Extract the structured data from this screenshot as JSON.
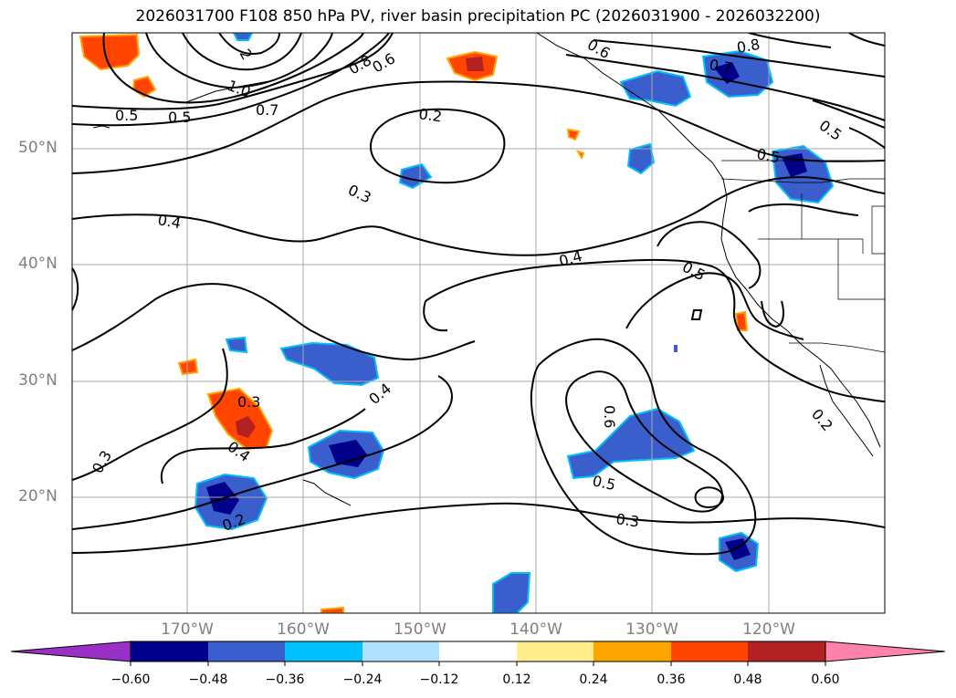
{
  "title": "2026031700 F108 850 hPa PV, river basin precipitation PC (2026031900 - 2026032200)",
  "map": {
    "lat_labels": [
      "50°N",
      "40°N",
      "30°N",
      "20°N"
    ],
    "lon_labels": [
      "170°W",
      "160°W",
      "150°W",
      "140°W",
      "130°W",
      "120°W"
    ],
    "contour_labels": [
      "0.5",
      "0.5",
      "1.0",
      "0.7",
      "0.8",
      "0.6",
      "2",
      "0.2",
      "0.3",
      "0.4",
      "0.4",
      "0.5",
      "0.6",
      "0.5",
      "0.3",
      "0.2",
      "0.3",
      "0.4",
      "0.3",
      "0.4",
      "0.2",
      "0.8",
      "0.7",
      "0.5",
      "0.5",
      "0.6"
    ]
  },
  "colorbar": {
    "ticks": [
      "−0.60",
      "−0.48",
      "−0.36",
      "−0.24",
      "−0.12",
      "0.12",
      "0.24",
      "0.36",
      "0.48",
      "0.60"
    ],
    "colors": [
      "#9b30c8",
      "#00008b",
      "#3a5fcd",
      "#00bfff",
      "#b0e2ff",
      "#ffffff",
      "#ffec8b",
      "#ffa500",
      "#ff4500",
      "#b22222",
      "#ff82ab"
    ]
  }
}
